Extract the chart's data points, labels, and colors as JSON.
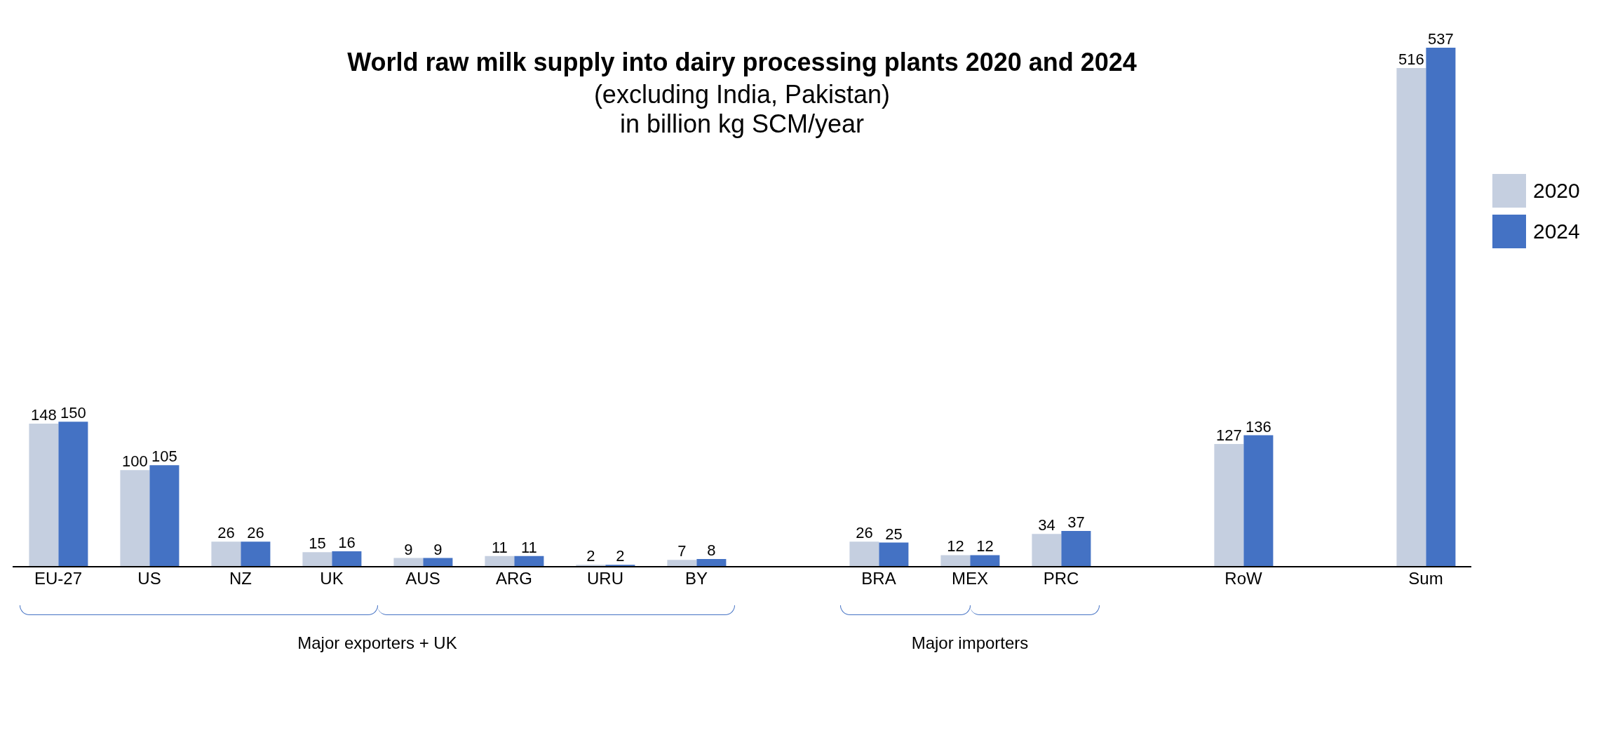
{
  "chart_data": {
    "type": "bar",
    "title": "World raw milk supply into dairy processing plants 2020 and 2024",
    "subtitle": "(excluding India, Pakistan)\nin billion kg SCM/year",
    "categories": [
      "EU-27",
      "US",
      "NZ",
      "UK",
      "AUS",
      "ARG",
      "URU",
      "BY",
      null,
      "BRA",
      "MEX",
      "PRC",
      null,
      "RoW",
      null,
      "Sum"
    ],
    "series": [
      {
        "name": "2020",
        "color": "#c5cfe0",
        "values": [
          148,
          100,
          26,
          15,
          9,
          11,
          2,
          7,
          null,
          26,
          12,
          34,
          null,
          127,
          null,
          516
        ]
      },
      {
        "name": "2024",
        "color": "#4472c4",
        "values": [
          150,
          105,
          26,
          16,
          9,
          11,
          2,
          8,
          null,
          25,
          12,
          37,
          null,
          136,
          null,
          537
        ]
      }
    ],
    "annotations": [
      "Major exporters + UK",
      "Major importers"
    ],
    "data_labels": true,
    "legend": "right",
    "grid": false
  }
}
